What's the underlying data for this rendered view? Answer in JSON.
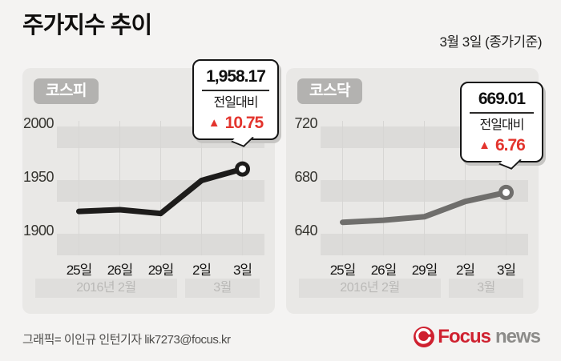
{
  "header": {
    "title": "주가지수 추이",
    "date_label": "3월 3일 (종가기준)"
  },
  "chart_data": [
    {
      "type": "line",
      "title": "코스피",
      "categories": [
        "25일",
        "26일",
        "29일",
        "2일",
        "3일"
      ],
      "values": [
        1918.57,
        1920.16,
        1916.66,
        1947.42,
        1958.17
      ],
      "yticks": [
        2000,
        1950,
        1900
      ],
      "ylim": [
        1880,
        2010
      ],
      "line_color": "#1d1c1b",
      "grid": true,
      "month_bands": [
        {
          "label": "2016년 2월",
          "from": 0,
          "to": 2
        },
        {
          "label": "3월",
          "from": 3,
          "to": 4
        }
      ],
      "callout": {
        "value": "1,958.17",
        "label": "전일대비",
        "direction": "up",
        "change": "10.75",
        "change_color": "#e3342d"
      }
    },
    {
      "type": "line",
      "title": "코스닥",
      "categories": [
        "25일",
        "26일",
        "29일",
        "2일",
        "3일"
      ],
      "values": [
        646.77,
        648.31,
        650.84,
        662.25,
        669.01
      ],
      "yticks": [
        720,
        680,
        640
      ],
      "ylim": [
        635,
        730
      ],
      "line_color": "#6f6e6c",
      "grid": true,
      "month_bands": [
        {
          "label": "2016년 2월",
          "from": 0,
          "to": 2
        },
        {
          "label": "3월",
          "from": 3,
          "to": 4
        }
      ],
      "callout": {
        "value": "669.01",
        "label": "전일대비",
        "direction": "up",
        "change": "6.76",
        "change_color": "#e3342d"
      }
    }
  ],
  "footer": {
    "credit": "그래픽= 이인규 인턴기자 lik7273@focus.kr",
    "logo": {
      "brand": "Focus",
      "suffix": "news",
      "brand_color": "#cf2130",
      "suffix_color": "#8c8b89"
    }
  }
}
